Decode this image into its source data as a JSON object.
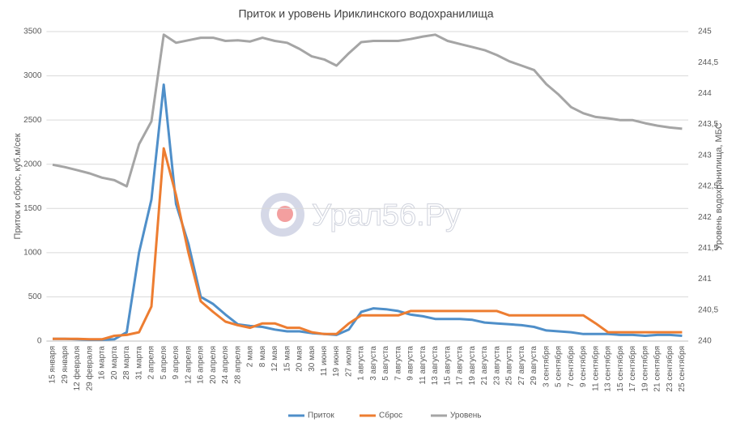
{
  "chart_data": {
    "type": "line",
    "title": "Приток и уровень Ириклинского водохранилища",
    "y_label": "Приток и сброс, куб.м/сек",
    "y2_label": "Уровень водохранилища, МБС",
    "watermark": "Урал56.Ру",
    "categories": [
      "15 января",
      "29 января",
      "12 февраля",
      "29 февраля",
      "16 марта",
      "20 марта",
      "28 марта",
      "31 марта",
      "2 апреля",
      "5 апреля",
      "9 апреля",
      "12 апреля",
      "16 апреля",
      "20 апреля",
      "24 апреля",
      "28 апреля",
      "2 мая",
      "8 мая",
      "12 мая",
      "15 мая",
      "20 мая",
      "30 мая",
      "11 июня",
      "19 июня",
      "27 июля",
      "1 августа",
      "3 августа",
      "5 августа",
      "7 августа",
      "9 августа",
      "11 августа",
      "13 августа",
      "15 августа",
      "17 августа",
      "19 августа",
      "21 августа",
      "23 августа",
      "25 августа",
      "27 августа",
      "29 августа",
      "3 сентября",
      "5 сентября",
      "7 сентября",
      "9 сентября",
      "11 сентября",
      "13 сентября",
      "15 сентября",
      "17 сентября",
      "19 сентября",
      "21 сентября",
      "23 сентября",
      "25 сентября"
    ],
    "series": [
      {
        "name": "Приток",
        "color": "#4f8fc9",
        "values": [
          25,
          25,
          20,
          15,
          15,
          20,
          100,
          1000,
          1600,
          2900,
          1550,
          1100,
          500,
          420,
          300,
          190,
          170,
          160,
          130,
          110,
          110,
          90,
          80,
          70,
          130,
          330,
          370,
          360,
          340,
          300,
          280,
          250,
          250,
          250,
          240,
          210,
          200,
          190,
          180,
          160,
          120,
          110,
          100,
          80,
          80,
          80,
          70,
          70,
          60,
          70,
          70,
          60
        ]
      },
      {
        "name": "Сброс",
        "color": "#ed7d31",
        "values": [
          25,
          25,
          25,
          20,
          20,
          60,
          70,
          100,
          390,
          2180,
          1650,
          1000,
          450,
          330,
          220,
          180,
          150,
          200,
          200,
          150,
          150,
          100,
          80,
          80,
          200,
          290,
          290,
          290,
          290,
          340,
          340,
          340,
          340,
          340,
          340,
          340,
          340,
          290,
          290,
          290,
          290,
          290,
          290,
          290,
          200,
          100,
          100,
          100,
          100,
          100,
          100,
          100
        ]
      },
      {
        "name": "Уровень",
        "color": "#a5a5a5",
        "axis": "y2",
        "values": [
          242.85,
          242.81,
          242.76,
          242.71,
          242.64,
          242.6,
          242.5,
          243.18,
          243.55,
          244.95,
          244.82,
          244.86,
          244.9,
          244.9,
          244.85,
          244.86,
          244.84,
          244.9,
          244.85,
          244.82,
          244.72,
          244.6,
          244.55,
          244.45,
          244.65,
          244.83,
          244.85,
          244.85,
          244.85,
          244.88,
          244.92,
          244.95,
          244.85,
          244.8,
          244.75,
          244.7,
          244.62,
          244.52,
          244.45,
          244.38,
          244.15,
          243.98,
          243.78,
          243.68,
          243.62,
          243.6,
          243.57,
          243.57,
          243.52,
          243.48,
          243.45,
          243.43
        ]
      }
    ],
    "ylim": [
      0,
      3500
    ],
    "yticks": [
      0,
      500,
      1000,
      1500,
      2000,
      2500,
      3000,
      3500
    ],
    "y2lim": [
      240,
      245
    ],
    "y2ticks": [
      240,
      {
        "value": 240.5,
        "label": "240,5"
      },
      241,
      {
        "value": 241.5,
        "label": "241,5"
      },
      242,
      {
        "value": 242.5,
        "label": "242,5"
      },
      243,
      {
        "value": 243.5,
        "label": "243,5"
      },
      244,
      {
        "value": 244.5,
        "label": "244,5"
      },
      245
    ],
    "grid": true,
    "legend": "bottom"
  }
}
